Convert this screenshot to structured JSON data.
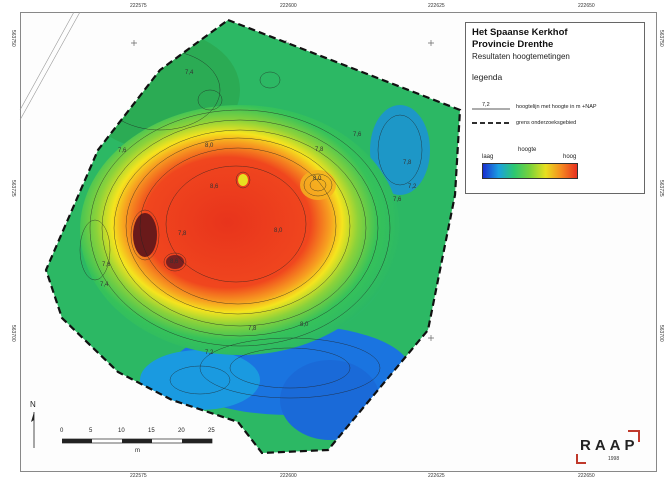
{
  "legend": {
    "title_line1": "Het Spaanse Kerkhof",
    "title_line2": "Provincie Drenthe",
    "subtitle": "Resultaten hoogtemetingen",
    "heading": "legenda",
    "contour_sample_value": "7,2",
    "contour_label": "hoogtelijn met hoogte in m +NAP",
    "boundary_label": "grens onderzoeksgebied",
    "ramp_title": "hoogte",
    "ramp_low": "laag",
    "ramp_high": "hoog"
  },
  "coords": {
    "top": [
      "222575",
      "222600",
      "222625",
      "222650"
    ],
    "bottom": [
      "222575",
      "222600",
      "222625",
      "222650"
    ],
    "left": [
      "563750",
      "563725",
      "563700"
    ],
    "right": [
      "563750",
      "563725",
      "563700"
    ]
  },
  "contour_labels": [
    "7,4",
    "7,6",
    "8,0",
    "7,8",
    "8,6",
    "8,0",
    "7,8",
    "8,6",
    "7,6",
    "8,0",
    "7,8",
    "8,0",
    "7,6",
    "7,2",
    "7,4",
    "7,6",
    "7,8",
    "7,2"
  ],
  "scale": {
    "ticks": [
      "0",
      "5",
      "10",
      "15",
      "20",
      "25"
    ],
    "unit": "m"
  },
  "north": "N",
  "logo": {
    "text": "RAAP",
    "year": "1998"
  },
  "colors": {
    "low": "#1a2fd0",
    "mid": "#2cc870",
    "high": "#e83020"
  }
}
